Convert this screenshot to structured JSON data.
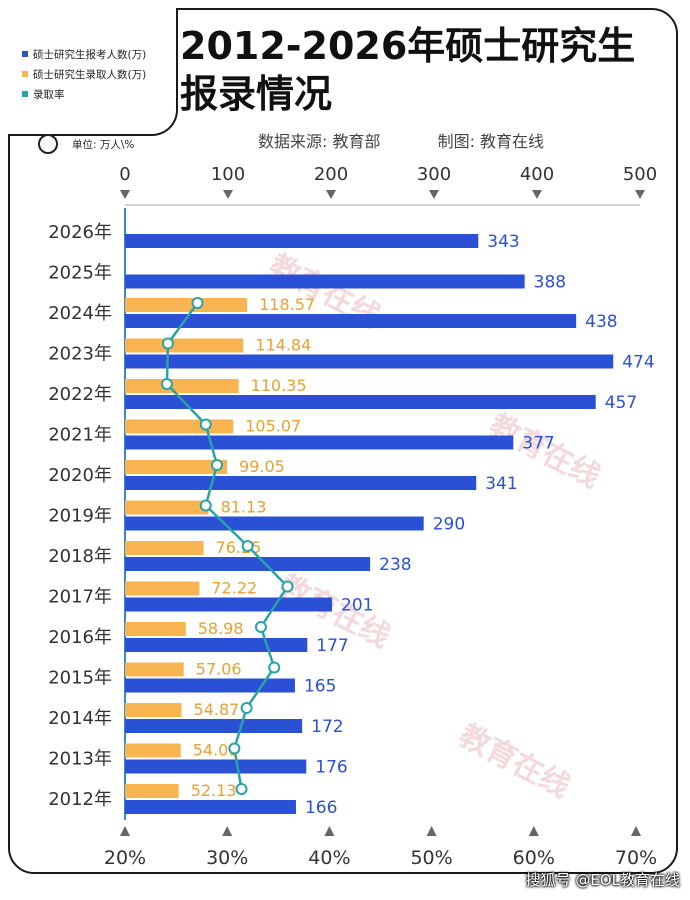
{
  "title_line1": "2012-2026年硕士研究生",
  "title_line2": "报录情况",
  "source_text": "数据来源: 教育部",
  "maker_text": "制图: 教育在线",
  "unit_text": "单位: 万人\\%",
  "credit_text": "搜狐号 @EOL教育在线",
  "watermark_text": "教育在线",
  "colors": {
    "applicants": "#2a50d6",
    "admitted": "#f9b452",
    "rate_line": "#2aa3a5",
    "applicant_label": "#2a50d6",
    "admitted_label": "#e8a030"
  },
  "legend": [
    {
      "label": "硕士研究生报考人数(万)",
      "color": "#2a50d6"
    },
    {
      "label": "硕士研究生录取人数(万)",
      "color": "#f9b452"
    },
    {
      "label": "录取率",
      "color": "#2aa3a5"
    }
  ],
  "chart_data": {
    "type": "bar",
    "orientation": "horizontal",
    "categories": [
      "2026年",
      "2025年",
      "2024年",
      "2023年",
      "2022年",
      "2021年",
      "2020年",
      "2019年",
      "2018年",
      "2017年",
      "2016年",
      "2015年",
      "2014年",
      "2013年",
      "2012年"
    ],
    "series": [
      {
        "name": "硕士研究生报考人数(万)",
        "values": [
          343,
          388,
          438,
          474,
          457,
          377,
          341,
          290,
          238,
          201,
          177,
          165,
          172,
          176,
          166
        ]
      },
      {
        "name": "硕士研究生录取人数(万)",
        "values": [
          null,
          null,
          118.57,
          114.84,
          110.35,
          105.07,
          99.05,
          81.13,
          76.25,
          72.22,
          58.98,
          57.06,
          54.87,
          54.09,
          52.13
        ]
      },
      {
        "name": "录取率",
        "values": [
          null,
          null,
          27.1,
          24.2,
          24.1,
          27.9,
          29.0,
          27.9,
          32.0,
          35.9,
          33.3,
          34.6,
          31.9,
          30.7,
          31.4
        ]
      }
    ],
    "top_axis": {
      "ticks": [
        0,
        100,
        200,
        300,
        400,
        500
      ],
      "range": [
        0,
        500
      ]
    },
    "bottom_axis": {
      "ticks": [
        "20%",
        "30%",
        "40%",
        "50%",
        "60%",
        "70%"
      ],
      "range": [
        20,
        70
      ]
    }
  }
}
